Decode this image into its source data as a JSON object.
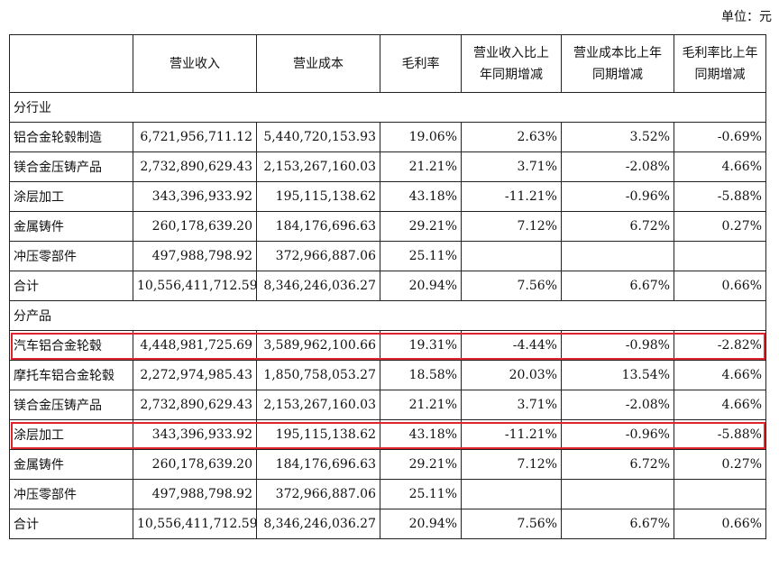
{
  "unit_label": "单位：元",
  "header": [
    "",
    "营业收入",
    "营业成本",
    "毛利率",
    "营业收入比上年同期增减",
    "营业成本比上年同期增减",
    "毛利率比上年同期增减"
  ],
  "header_lines": [
    [
      ""
    ],
    [
      "营业收入"
    ],
    [
      "营业成本"
    ],
    [
      "毛利率"
    ],
    [
      "营业收入比上",
      "年同期增减"
    ],
    [
      "营业成本比上年",
      "同期增减"
    ],
    [
      "毛利率比上年",
      "同期增减"
    ]
  ],
  "section_industry": "分行业",
  "rows_industry": [
    {
      "name": "铝合金轮毂制造",
      "revenue": "6,721,956,711.12",
      "cost": "5,440,720,153.93",
      "margin": "19.06%",
      "rev_change": "2.63%",
      "cost_change": "3.52%",
      "margin_change": "-0.69%"
    },
    {
      "name": "镁合金压铸产品",
      "revenue": "2,732,890,629.43",
      "cost": "2,153,267,160.03",
      "margin": "21.21%",
      "rev_change": "3.71%",
      "cost_change": "-2.08%",
      "margin_change": "4.66%"
    },
    {
      "name": "涂层加工",
      "revenue": "343,396,933.92",
      "cost": "195,115,138.62",
      "margin": "43.18%",
      "rev_change": "-11.21%",
      "cost_change": "-0.96%",
      "margin_change": "-5.88%"
    },
    {
      "name": "金属铸件",
      "revenue": "260,178,639.20",
      "cost": "184,176,696.63",
      "margin": "29.21%",
      "rev_change": "7.12%",
      "cost_change": "6.72%",
      "margin_change": "0.27%"
    },
    {
      "name": "冲压零部件",
      "revenue": "497,988,798.92",
      "cost": "372,966,887.06",
      "margin": "25.11%",
      "rev_change": "",
      "cost_change": "",
      "margin_change": ""
    },
    {
      "name": "合计",
      "revenue": "10,556,411,712.59",
      "cost": "8,346,246,036.27",
      "margin": "20.94%",
      "rev_change": "7.56%",
      "cost_change": "6.67%",
      "margin_change": "0.66%"
    }
  ],
  "section_product": "分产品",
  "rows_product": [
    {
      "name": "汽车铝合金轮毂",
      "revenue": "4,448,981,725.69",
      "cost": "3,589,962,100.66",
      "margin": "19.31%",
      "rev_change": "-4.44%",
      "cost_change": "-0.98%",
      "margin_change": "-2.82%"
    },
    {
      "name": "摩托车铝合金轮毂",
      "revenue": "2,272,974,985.43",
      "cost": "1,850,758,053.27",
      "margin": "18.58%",
      "rev_change": "20.03%",
      "cost_change": "13.54%",
      "margin_change": "4.66%"
    },
    {
      "name": "镁合金压铸产品",
      "revenue": "2,732,890,629.43",
      "cost": "2,153,267,160.03",
      "margin": "21.21%",
      "rev_change": "3.71%",
      "cost_change": "-2.08%",
      "margin_change": "4.66%"
    },
    {
      "name": "涂层加工",
      "revenue": "343,396,933.92",
      "cost": "195,115,138.62",
      "margin": "43.18%",
      "rev_change": "-11.21%",
      "cost_change": "-0.96%",
      "margin_change": "-5.88%"
    },
    {
      "name": "金属铸件",
      "revenue": "260,178,639.20",
      "cost": "184,176,696.63",
      "margin": "29.21%",
      "rev_change": "7.12%",
      "cost_change": "6.72%",
      "margin_change": "0.27%"
    },
    {
      "name": "冲压零部件",
      "revenue": "497,988,798.92",
      "cost": "372,966,887.06",
      "margin": "25.11%",
      "rev_change": "",
      "cost_change": "",
      "margin_change": ""
    },
    {
      "name": "合计",
      "revenue": "10,556,411,712.59",
      "cost": "8,346,246,036.27",
      "margin": "20.94%",
      "rev_change": "7.56%",
      "cost_change": "6.67%",
      "margin_change": "0.66%"
    }
  ],
  "highlighted_product_rows": [
    0,
    3
  ],
  "colors": {
    "highlight_border": "#e0242b",
    "grid": "#222222",
    "text": "#111111"
  }
}
